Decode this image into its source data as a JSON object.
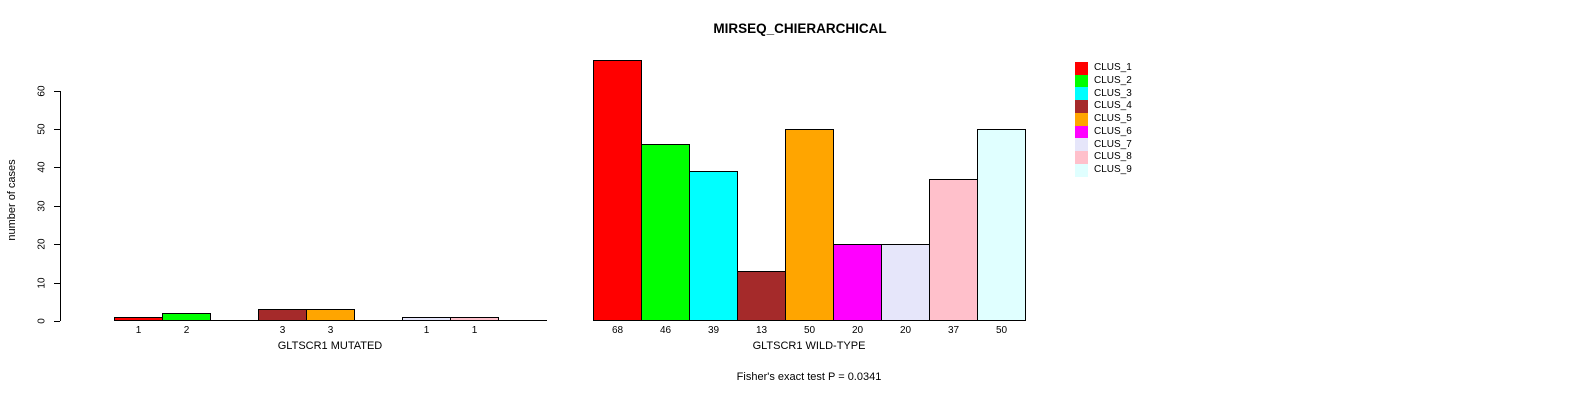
{
  "chart_data": {
    "type": "bar",
    "title": "MIRSEQ_CHIERARCHICAL",
    "ylabel": "number of cases",
    "ylim": [
      0,
      60
    ],
    "yticks": [
      0,
      10,
      20,
      30,
      40,
      50,
      60
    ],
    "grid": false,
    "footnote": "Fisher's exact test P = 0.0341",
    "legend": {
      "position": "right",
      "entries": [
        {
          "label": "CLUS_1",
          "color": "#FF0000"
        },
        {
          "label": "CLUS_2",
          "color": "#00FF00"
        },
        {
          "label": "CLUS_3",
          "color": "#00FFFF"
        },
        {
          "label": "CLUS_4",
          "color": "#A52A2A"
        },
        {
          "label": "CLUS_5",
          "color": "#FFA500"
        },
        {
          "label": "CLUS_6",
          "color": "#FF00FF"
        },
        {
          "label": "CLUS_7",
          "color": "#E6E6FA"
        },
        {
          "label": "CLUS_8",
          "color": "#FFC0CB"
        },
        {
          "label": "CLUS_9",
          "color": "#E0FFFF"
        }
      ]
    },
    "panels": [
      {
        "xlabel": "GLTSCR1 MUTATED",
        "categories": [
          "CLUS_1",
          "CLUS_2",
          "CLUS_3",
          "CLUS_4",
          "CLUS_5",
          "CLUS_6",
          "CLUS_7",
          "CLUS_8",
          "CLUS_9"
        ],
        "values": [
          1,
          2,
          0,
          3,
          3,
          0,
          1,
          1,
          0
        ],
        "bar_labels": [
          "1",
          "2",
          "",
          "3",
          "3",
          "",
          "1",
          "1",
          ""
        ]
      },
      {
        "xlabel": "GLTSCR1 WILD-TYPE",
        "categories": [
          "CLUS_1",
          "CLUS_2",
          "CLUS_3",
          "CLUS_4",
          "CLUS_5",
          "CLUS_6",
          "CLUS_7",
          "CLUS_8",
          "CLUS_9"
        ],
        "values": [
          68,
          46,
          39,
          13,
          50,
          20,
          20,
          37,
          50
        ],
        "bar_labels": [
          "68",
          "46",
          "39",
          "13",
          "50",
          "20",
          "20",
          "37",
          "50"
        ]
      }
    ]
  }
}
